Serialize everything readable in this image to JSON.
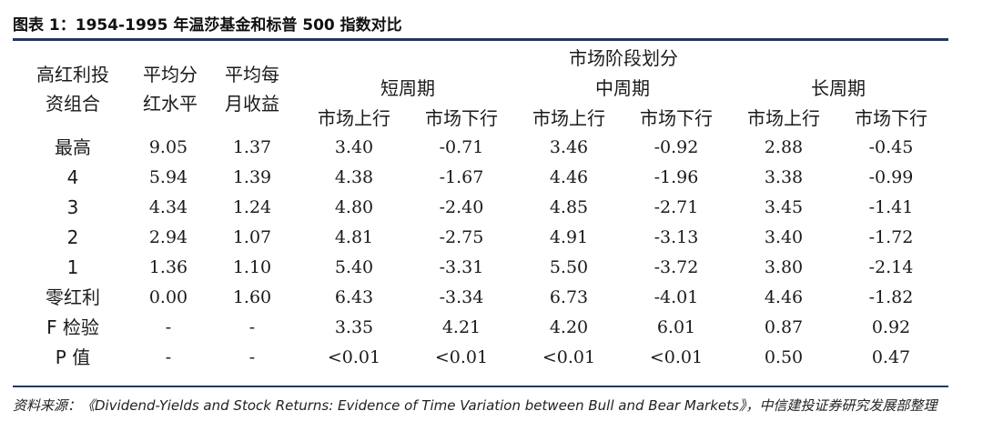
{
  "title": "图表 1：1954-1995 年温莎基金和标普 500 指数对比",
  "header": {
    "col1": [
      "高红利投",
      "资组合"
    ],
    "col2": [
      "平均分",
      "红水平"
    ],
    "col3": [
      "平均每",
      "月收益"
    ],
    "group_top": "市场阶段划分",
    "periods": [
      "短周期",
      "中周期",
      "长周期"
    ],
    "phases": [
      "市场上行",
      "市场下行",
      "市场上行",
      "市场下行",
      "市场上行",
      "市场下行"
    ]
  },
  "rows": [
    {
      "label": "最高",
      "values": [
        "9.05",
        "1.37",
        "3.40",
        "-0.71",
        "3.46",
        "-0.92",
        "2.88",
        "-0.45"
      ]
    },
    {
      "label": "4",
      "values": [
        "5.94",
        "1.39",
        "4.38",
        "-1.67",
        "4.46",
        "-1.96",
        "3.38",
        "-0.99"
      ]
    },
    {
      "label": "3",
      "values": [
        "4.34",
        "1.24",
        "4.80",
        "-2.40",
        "4.85",
        "-2.71",
        "3.45",
        "-1.41"
      ]
    },
    {
      "label": "2",
      "values": [
        "2.94",
        "1.07",
        "4.81",
        "-2.75",
        "4.91",
        "-3.13",
        "3.40",
        "-1.72"
      ]
    },
    {
      "label": "1",
      "values": [
        "1.36",
        "1.10",
        "5.40",
        "-3.31",
        "5.50",
        "-3.72",
        "3.80",
        "-2.14"
      ]
    },
    {
      "label": "零红利",
      "values": [
        "0.00",
        "1.60",
        "6.43",
        "-3.34",
        "6.73",
        "-4.01",
        "4.46",
        "-1.82"
      ]
    },
    {
      "label": "F 检验",
      "values": [
        "-",
        "-",
        "3.35",
        "4.21",
        "4.20",
        "6.01",
        "0.87",
        "0.92"
      ]
    },
    {
      "label": "P 值",
      "values": [
        "-",
        "-",
        "<0.01",
        "<0.01",
        "<0.01",
        "<0.01",
        "0.50",
        "0.47"
      ]
    }
  ],
  "source": "资料来源：《Dividend-Yields and Stock Returns: Evidence of Time Variation between Bull and Bear Markets》，中信建投证券研究发展部整理"
}
